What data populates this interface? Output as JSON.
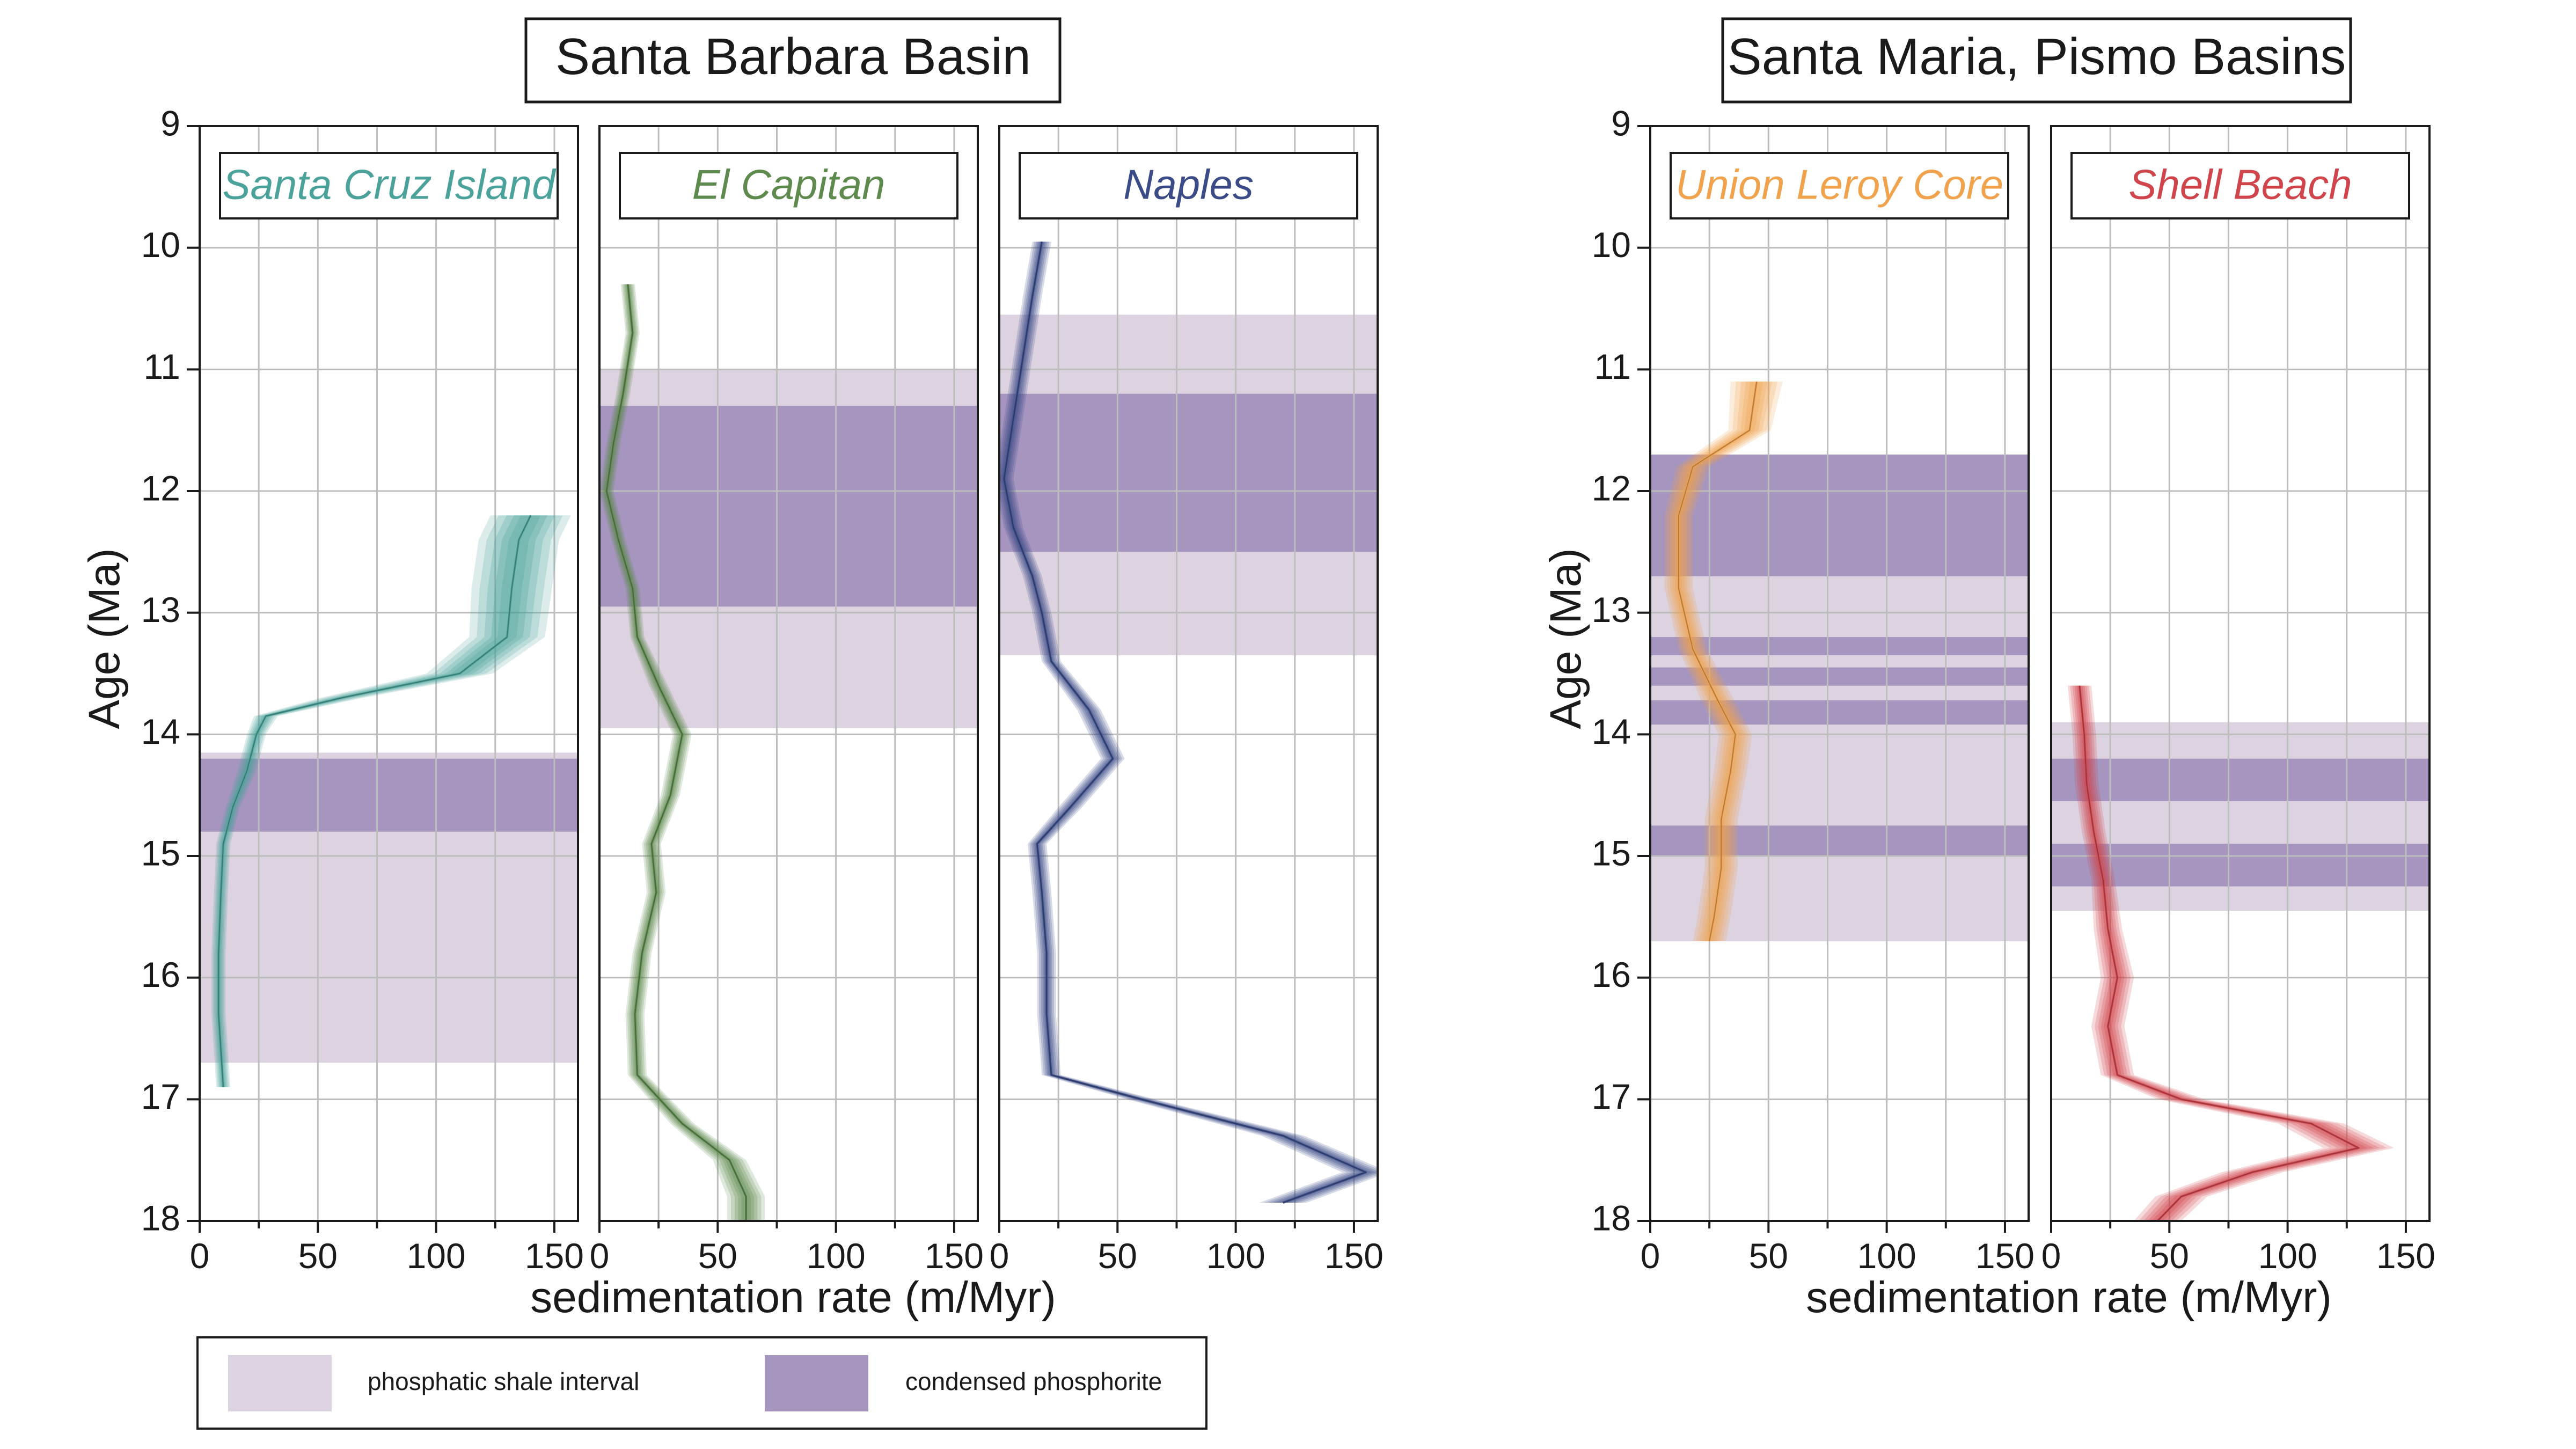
{
  "colors": {
    "shale": "#ddd3e0",
    "condensed": "#a595bf",
    "grid": "#bdbdbd",
    "santa_cruz": "#4aa29a",
    "el_capitan": "#5e8a4e",
    "naples": "#3b4b87",
    "union_leroy": "#f0a24c",
    "shell_beach": "#d0454c"
  },
  "legend": {
    "shale_label": "phosphatic shale interval",
    "condensed_label": "condensed phosphorite"
  },
  "chart_data": [
    {
      "group": "Santa Barbara Basin",
      "title": "Santa Barbara Basin",
      "xlabel": "sedimentation rate (m/Myr)",
      "ylabel": "Age (Ma)",
      "yticks": [
        "9",
        "10",
        "11",
        "12",
        "13",
        "14",
        "15",
        "16",
        "17",
        "18"
      ],
      "xticks": [
        "0",
        "50",
        "100",
        "150"
      ],
      "panels": [
        {
          "type": "line",
          "label": "Santa Cruz Island",
          "color_key": "santa_cruz",
          "xlim": [
            0,
            160
          ],
          "ylim": [
            9,
            18
          ],
          "shale_intervals": [
            [
              14.15,
              16.7
            ]
          ],
          "condensed_intervals": [
            [
              14.2,
              14.8
            ]
          ],
          "series": {
            "age": [
              12.2,
              12.4,
              12.8,
              13.2,
              13.5,
              13.7,
              13.85,
              14.0,
              14.3,
              14.6,
              14.9,
              15.3,
              15.8,
              16.3,
              16.9
            ],
            "rate": [
              140,
              135,
              132,
              130,
              110,
              60,
              28,
              24,
              20,
              14,
              10,
              9,
              8,
              8,
              10
            ],
            "spread": [
              17,
              17,
              17,
              16,
              14,
              9,
              5,
              4,
              4,
              3,
              3,
              3,
              3,
              3,
              3
            ]
          }
        },
        {
          "type": "line",
          "label": "El Capitan",
          "color_key": "el_capitan",
          "xlim": [
            0,
            160
          ],
          "ylim": [
            9,
            18
          ],
          "shale_intervals": [
            [
              11.0,
              13.95
            ]
          ],
          "condensed_intervals": [
            [
              11.3,
              12.95
            ]
          ],
          "series": {
            "age": [
              10.3,
              10.7,
              11.2,
              11.6,
              12.0,
              12.4,
              12.8,
              13.2,
              13.6,
              14.0,
              14.5,
              14.9,
              15.3,
              15.8,
              16.3,
              16.8,
              17.2,
              17.5,
              17.8,
              18.0
            ],
            "rate": [
              12,
              14,
              10,
              6,
              3,
              8,
              14,
              16,
              25,
              35,
              30,
              22,
              24,
              18,
              15,
              16,
              35,
              55,
              62,
              62
            ],
            "spread": [
              3,
              3,
              3,
              3,
              3,
              3,
              3,
              3,
              4,
              4,
              4,
              4,
              4,
              4,
              4,
              4,
              5,
              7,
              8,
              8
            ]
          }
        },
        {
          "type": "line",
          "label": "Naples",
          "color_key": "naples",
          "xlim": [
            0,
            160
          ],
          "ylim": [
            9,
            18
          ],
          "shale_intervals": [
            [
              10.55,
              13.35
            ]
          ],
          "condensed_intervals": [
            [
              11.2,
              12.5
            ]
          ],
          "series": {
            "age": [
              9.95,
              10.4,
              10.9,
              11.4,
              11.9,
              12.3,
              12.7,
              13.0,
              13.4,
              13.8,
              14.2,
              14.6,
              14.9,
              15.3,
              15.8,
              16.3,
              16.8,
              17.0,
              17.3,
              17.6,
              17.85
            ],
            "rate": [
              18,
              14,
              10,
              6,
              2,
              6,
              14,
              18,
              22,
              38,
              48,
              30,
              16,
              18,
              20,
              20,
              22,
              60,
              120,
              155,
              120
            ],
            "spread": [
              4,
              4,
              4,
              4,
              4,
              4,
              4,
              4,
              4,
              5,
              5,
              5,
              4,
              4,
              4,
              4,
              4,
              6,
              9,
              10,
              10
            ]
          }
        }
      ]
    },
    {
      "group": "Santa Maria, Pismo Basins",
      "title": "Santa Maria, Pismo Basins",
      "xlabel": "sedimentation rate (m/Myr)",
      "ylabel": "Age (Ma)",
      "yticks": [
        "9",
        "10",
        "11",
        "12",
        "13",
        "14",
        "15",
        "16",
        "17",
        "18"
      ],
      "xticks": [
        "0",
        "50",
        "100",
        "150"
      ],
      "panels": [
        {
          "type": "line",
          "label": "Union Leroy Core",
          "color_key": "union_leroy",
          "xlim": [
            0,
            160
          ],
          "ylim": [
            9,
            18
          ],
          "shale_intervals": [
            [
              11.7,
              15.7
            ]
          ],
          "condensed_intervals": [
            [
              11.7,
              12.7
            ],
            [
              13.2,
              13.35
            ],
            [
              13.45,
              13.6
            ],
            [
              13.72,
              13.92
            ],
            [
              14.75,
              15.0
            ]
          ],
          "series": {
            "age": [
              11.1,
              11.5,
              11.8,
              12.2,
              12.8,
              13.3,
              13.7,
              14.0,
              14.3,
              14.7,
              15.1,
              15.5,
              15.7
            ],
            "rate": [
              45,
              42,
              18,
              12,
              12,
              18,
              28,
              36,
              34,
              30,
              30,
              27,
              25
            ],
            "spread": [
              11,
              9,
              7,
              6,
              6,
              6,
              7,
              7,
              7,
              7,
              7,
              7,
              7
            ]
          }
        },
        {
          "type": "line",
          "label": "Shell Beach",
          "color_key": "shell_beach",
          "xlim": [
            0,
            160
          ],
          "ylim": [
            9,
            18
          ],
          "shale_intervals": [
            [
              13.9,
              15.45
            ]
          ],
          "condensed_intervals": [
            [
              14.2,
              14.55
            ],
            [
              14.9,
              15.25
            ]
          ],
          "series": {
            "age": [
              13.6,
              14.0,
              14.4,
              14.8,
              15.2,
              15.6,
              16.0,
              16.4,
              16.8,
              17.0,
              17.2,
              17.4,
              17.6,
              17.8,
              18.0
            ],
            "rate": [
              12,
              14,
              15,
              18,
              22,
              24,
              28,
              24,
              28,
              55,
              110,
              130,
              85,
              55,
              45
            ],
            "spread": [
              5,
              5,
              5,
              5,
              5,
              6,
              7,
              7,
              7,
              10,
              14,
              15,
              13,
              11,
              10
            ]
          }
        }
      ]
    }
  ]
}
